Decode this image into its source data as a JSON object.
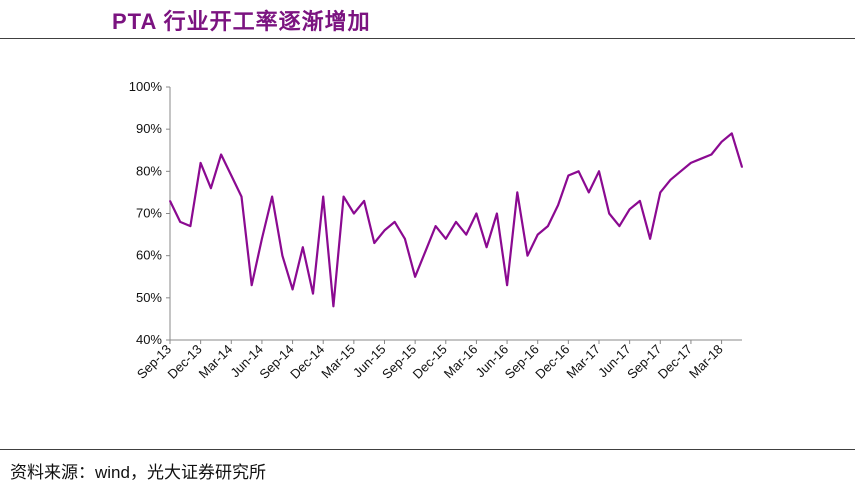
{
  "title": "PTA 行业开工率逐渐增加",
  "source": "资料来源：wind，光大证券研究所",
  "colors": {
    "title": "#7b1380",
    "series": "#8b0a91"
  },
  "chart_data": {
    "type": "line",
    "title": "",
    "xlabel": "",
    "ylabel": "",
    "ylim": [
      0.4,
      1.0
    ],
    "y_ticks": [
      0.4,
      0.5,
      0.6,
      0.7,
      0.8,
      0.9,
      1.0
    ],
    "y_tick_labels": [
      "40%",
      "50%",
      "60%",
      "70%",
      "80%",
      "90%",
      "100%"
    ],
    "x_range": [
      "2013-09",
      "2018-05"
    ],
    "x_tick_labels": [
      "Sep-13",
      "Dec-13",
      "Mar-14",
      "Jun-14",
      "Sep-14",
      "Dec-14",
      "Mar-15",
      "Jun-15",
      "Sep-15",
      "Dec-15",
      "Mar-16",
      "Jun-16",
      "Sep-16",
      "Dec-16",
      "Mar-17",
      "Jun-17",
      "Sep-17",
      "Dec-17",
      "Mar-18"
    ],
    "x_ticks": [
      "2013-09",
      "2013-12",
      "2014-03",
      "2014-06",
      "2014-09",
      "2014-12",
      "2015-03",
      "2015-06",
      "2015-09",
      "2015-12",
      "2016-03",
      "2016-06",
      "2016-09",
      "2016-12",
      "2017-03",
      "2017-06",
      "2017-09",
      "2017-12",
      "2018-03"
    ],
    "grid": false,
    "series": [
      {
        "name": "",
        "x": [
          "2013-09",
          "2013-10",
          "2013-11",
          "2013-12",
          "2014-01",
          "2014-02",
          "2014-03",
          "2014-04",
          "2014-05",
          "2014-06",
          "2014-07",
          "2014-08",
          "2014-09",
          "2014-10",
          "2014-11",
          "2014-12",
          "2015-01",
          "2015-02",
          "2015-03",
          "2015-04",
          "2015-05",
          "2015-06",
          "2015-07",
          "2015-08",
          "2015-09",
          "2015-10",
          "2015-11",
          "2015-12",
          "2016-01",
          "2016-02",
          "2016-03",
          "2016-04",
          "2016-05",
          "2016-06",
          "2016-07",
          "2016-08",
          "2016-09",
          "2016-10",
          "2016-11",
          "2016-12",
          "2017-01",
          "2017-02",
          "2017-03",
          "2017-04",
          "2017-05",
          "2017-06",
          "2017-07",
          "2017-08",
          "2017-09",
          "2017-10",
          "2017-11",
          "2017-12",
          "2018-01",
          "2018-02",
          "2018-03",
          "2018-04",
          "2018-05"
        ],
        "y": [
          0.73,
          0.68,
          0.67,
          0.82,
          0.76,
          0.84,
          0.79,
          0.74,
          0.53,
          0.64,
          0.74,
          0.6,
          0.52,
          0.62,
          0.51,
          0.74,
          0.48,
          0.74,
          0.7,
          0.73,
          0.63,
          0.66,
          0.68,
          0.64,
          0.55,
          0.61,
          0.67,
          0.64,
          0.68,
          0.65,
          0.7,
          0.62,
          0.7,
          0.53,
          0.75,
          0.6,
          0.65,
          0.67,
          0.72,
          0.79,
          0.8,
          0.75,
          0.8,
          0.7,
          0.67,
          0.71,
          0.73,
          0.64,
          0.75,
          0.78,
          0.8,
          0.82,
          0.83,
          0.84,
          0.87,
          0.89,
          0.81
        ]
      }
    ]
  }
}
